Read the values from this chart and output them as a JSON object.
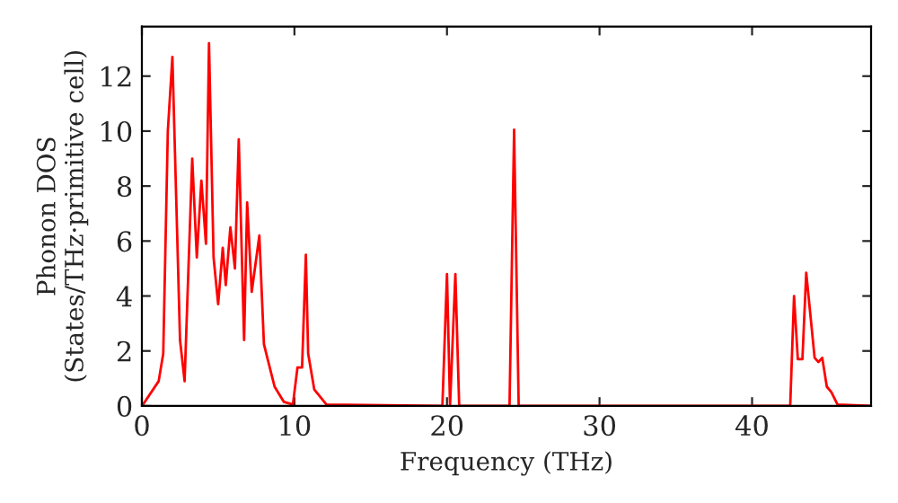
{
  "chart_data": {
    "type": "line",
    "xlabel": "Frequency (THz)",
    "ylabel": "Phonon DOS\n(States/THz·primitive cell)",
    "xlim": [
      0,
      47.8
    ],
    "ylim": [
      0,
      13.8
    ],
    "xticks": [
      0,
      10,
      20,
      30,
      40
    ],
    "yticks": [
      0,
      2,
      4,
      6,
      8,
      10,
      12
    ],
    "grid": false,
    "legend": false,
    "series": [
      {
        "color": "#ff0000",
        "x": [
          0.1,
          1.1,
          1.4,
          1.7,
          2.0,
          2.5,
          2.8,
          3.3,
          3.6,
          3.9,
          4.2,
          4.4,
          4.7,
          5.0,
          5.3,
          5.5,
          5.8,
          6.1,
          6.35,
          6.7,
          6.9,
          7.2,
          7.7,
          8.0,
          8.2,
          8.7,
          9.3,
          9.9,
          10.2,
          10.5,
          10.75,
          10.9,
          11.3,
          12.1,
          19.7,
          20.0,
          20.2,
          20.55,
          20.8,
          24.1,
          24.4,
          24.7,
          42.5,
          42.75,
          43.0,
          43.3,
          43.55,
          44.1,
          44.35,
          44.6,
          44.9,
          45.2,
          45.6,
          47.8
        ],
        "values": [
          0.07,
          0.9,
          1.9,
          10.0,
          12.7,
          2.4,
          0.9,
          9.0,
          5.4,
          8.2,
          5.9,
          13.2,
          5.4,
          3.7,
          5.75,
          4.4,
          6.5,
          5.0,
          9.7,
          2.4,
          7.4,
          4.15,
          6.2,
          2.25,
          1.8,
          0.7,
          0.15,
          0.05,
          1.4,
          1.4,
          5.5,
          1.9,
          0.6,
          0.05,
          0,
          4.8,
          0,
          4.8,
          0,
          0,
          10.05,
          0,
          0,
          4.0,
          1.7,
          1.7,
          4.85,
          1.75,
          1.6,
          1.75,
          0.7,
          0.5,
          0.05,
          0
        ]
      }
    ]
  }
}
